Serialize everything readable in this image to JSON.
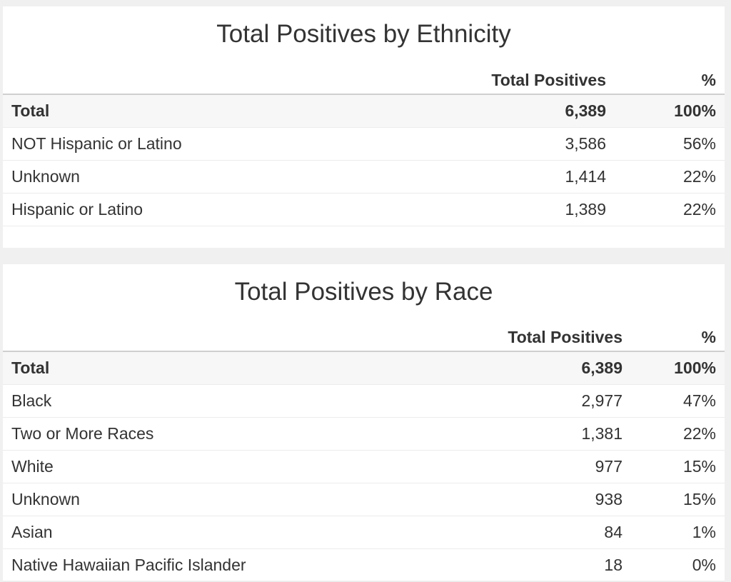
{
  "ethnicity": {
    "title": "Total Positives by Ethnicity",
    "headers": {
      "label": "",
      "count": "Total Positives",
      "pct": "%"
    },
    "rows": [
      {
        "label": "Total",
        "count": "6,389",
        "pct": "100%"
      },
      {
        "label": "NOT Hispanic or Latino",
        "count": "3,586",
        "pct": "56%"
      },
      {
        "label": "Unknown",
        "count": "1,414",
        "pct": "22%"
      },
      {
        "label": "Hispanic or Latino",
        "count": "1,389",
        "pct": "22%"
      }
    ]
  },
  "race": {
    "title": "Total Positives by Race",
    "headers": {
      "label": "",
      "count": "Total Positives",
      "pct": "%"
    },
    "rows": [
      {
        "label": "Total",
        "count": "6,389",
        "pct": "100%"
      },
      {
        "label": "Black",
        "count": "2,977",
        "pct": "47%"
      },
      {
        "label": "Two or More Races",
        "count": "1,381",
        "pct": "22%"
      },
      {
        "label": "White",
        "count": "977",
        "pct": "15%"
      },
      {
        "label": "Unknown",
        "count": "938",
        "pct": "15%"
      },
      {
        "label": "Asian",
        "count": "84",
        "pct": "1%"
      },
      {
        "label": "Native Hawaiian Pacific Islander",
        "count": "18",
        "pct": "0%"
      }
    ]
  }
}
